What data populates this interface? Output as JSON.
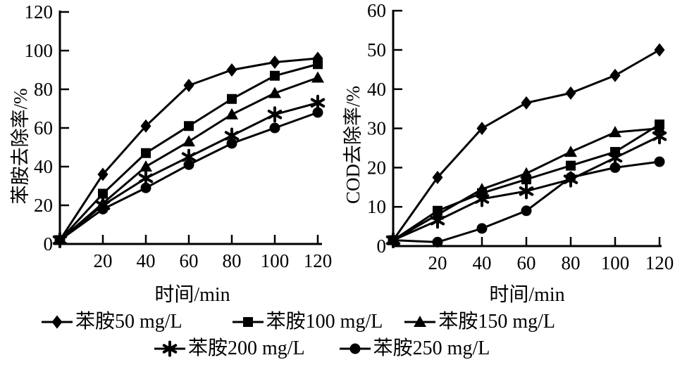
{
  "chart_data": [
    {
      "type": "line",
      "title": "",
      "xlabel": "时间/min",
      "ylabel": "苯胺去除率/%",
      "x": [
        0,
        20,
        40,
        60,
        80,
        100,
        120
      ],
      "xticks": [
        20,
        40,
        60,
        80,
        100,
        120
      ],
      "yticks": [
        0,
        20,
        40,
        60,
        80,
        100,
        120
      ],
      "xlim": [
        0,
        122
      ],
      "ylim": [
        0,
        120
      ],
      "grid": "off",
      "line_color": "#000000",
      "series": [
        {
          "name": "苯胺50 mg/L",
          "marker": "diamond",
          "values": [
            2,
            36,
            61,
            82,
            90,
            94,
            96
          ]
        },
        {
          "name": "苯胺100 mg/L",
          "marker": "square",
          "values": [
            2,
            26,
            47,
            61,
            75,
            87,
            93
          ]
        },
        {
          "name": "苯胺150 mg/L",
          "marker": "triangle",
          "values": [
            2,
            21,
            40,
            53,
            67,
            78,
            86
          ]
        },
        {
          "name": "苯胺200 mg/L",
          "marker": "asterisk",
          "values": [
            2,
            20,
            34,
            45,
            56,
            67,
            73
          ]
        },
        {
          "name": "苯胺250 mg/L",
          "marker": "circle",
          "values": [
            2,
            18,
            29,
            41,
            52,
            60,
            68
          ]
        }
      ]
    },
    {
      "type": "line",
      "title": "",
      "xlabel": "时间/min",
      "ylabel": "COD去除率/%",
      "x": [
        0,
        20,
        40,
        60,
        80,
        100,
        120
      ],
      "xticks": [
        20,
        40,
        60,
        80,
        100,
        120
      ],
      "yticks": [
        0,
        10,
        20,
        30,
        40,
        50,
        60
      ],
      "xlim": [
        0,
        122
      ],
      "ylim": [
        0,
        60
      ],
      "grid": "off",
      "line_color": "#000000",
      "series": [
        {
          "name": "苯胺50 mg/L",
          "marker": "diamond",
          "values": [
            1.5,
            17.5,
            30,
            36.5,
            39,
            43.5,
            50
          ]
        },
        {
          "name": "苯胺100 mg/L",
          "marker": "square",
          "values": [
            1.5,
            9,
            13.5,
            17,
            20.5,
            24,
            31
          ]
        },
        {
          "name": "苯胺150 mg/L",
          "marker": "triangle",
          "values": [
            1.5,
            8,
            14.5,
            18.5,
            24,
            29,
            30
          ]
        },
        {
          "name": "苯胺200 mg/L",
          "marker": "asterisk",
          "values": [
            1.5,
            6.5,
            12,
            14,
            17,
            22.5,
            28
          ]
        },
        {
          "name": "苯胺250 mg/L",
          "marker": "circle",
          "values": [
            1.5,
            1,
            4.5,
            9,
            17.5,
            20,
            21.5
          ]
        }
      ]
    }
  ],
  "legend": {
    "rows": [
      [
        {
          "marker": "diamond",
          "label": "苯胺50 mg/L"
        },
        {
          "marker": "square",
          "label": "苯胺100 mg/L"
        },
        {
          "marker": "triangle",
          "label": "苯胺150 mg/L"
        }
      ],
      [
        {
          "marker": "asterisk",
          "label": "苯胺200 mg/L"
        },
        {
          "marker": "circle",
          "label": "苯胺250 mg/L"
        }
      ]
    ]
  },
  "colors": {
    "foreground": "#000000",
    "background": "#ffffff"
  }
}
